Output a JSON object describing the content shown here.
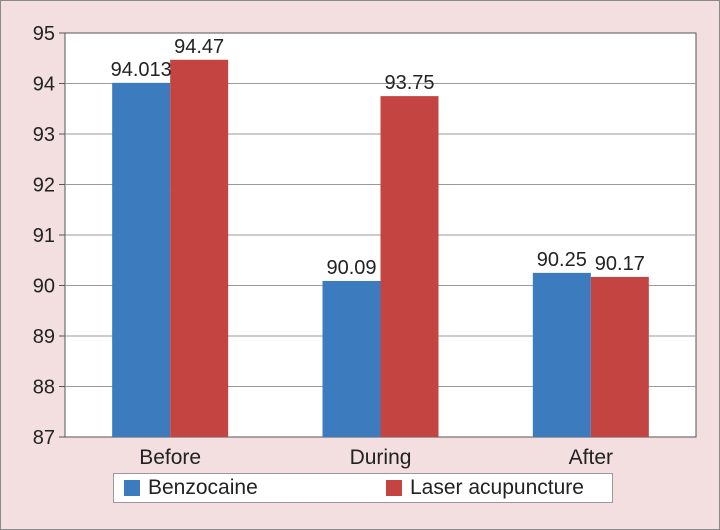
{
  "chart_data": {
    "type": "bar",
    "categories": [
      "Before",
      "During",
      "After"
    ],
    "series": [
      {
        "name": "Benzocaine",
        "values": [
          94.013,
          90.09,
          90.25
        ],
        "labels": [
          "94.013",
          "90.09",
          "90.25"
        ],
        "color": "#3d7bbf"
      },
      {
        "name": "Laser acupuncture",
        "values": [
          94.47,
          93.75,
          90.17
        ],
        "labels": [
          "94.47",
          "93.75",
          "90.17"
        ],
        "color": "#c44442"
      }
    ],
    "yticks": [
      87,
      88,
      89,
      90,
      91,
      92,
      93,
      94,
      95
    ],
    "ylim": [
      87,
      95
    ],
    "grid": true,
    "legend_position": "bottom"
  }
}
